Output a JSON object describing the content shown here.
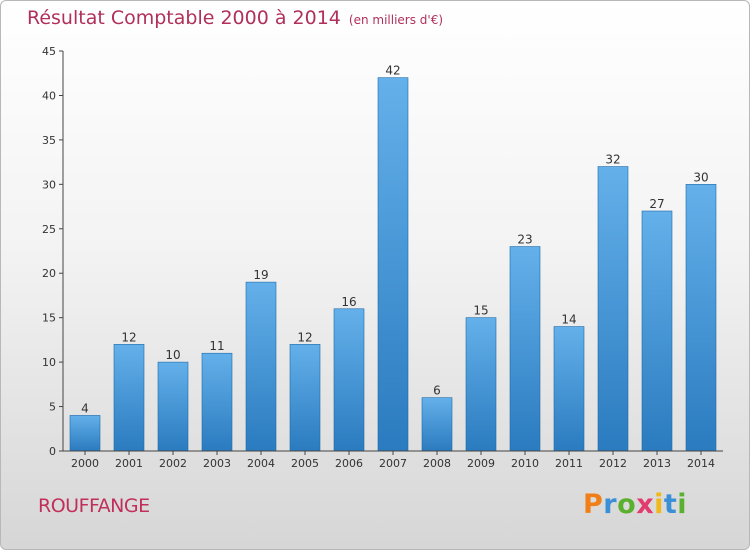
{
  "chart_data": {
    "type": "bar",
    "title": "Résultat Comptable 2000 à 2014",
    "subtitle": "(en milliers d'€)",
    "categories": [
      "2000",
      "2001",
      "2002",
      "2003",
      "2004",
      "2005",
      "2006",
      "2007",
      "2008",
      "2009",
      "2010",
      "2011",
      "2012",
      "2013",
      "2014"
    ],
    "values": [
      4,
      12,
      10,
      11,
      19,
      12,
      16,
      42,
      6,
      15,
      23,
      14,
      32,
      27,
      30
    ],
    "ylim": [
      0,
      45
    ],
    "yticks": [
      0,
      5,
      10,
      15,
      20,
      25,
      30,
      35,
      40,
      45
    ],
    "xlabel": "",
    "ylabel": "",
    "grid": false
  },
  "footer": {
    "town": "ROUFFANGE",
    "brand_letters": [
      "P",
      "r",
      "o",
      "x",
      "i",
      "t",
      "i"
    ],
    "brand_colors": [
      "#f07f1a",
      "#3a8fd6",
      "#5cb030",
      "#e23b6f",
      "#f0b81a",
      "#3a8fd6",
      "#5cb030"
    ]
  },
  "colors": {
    "bar_top": "#64b0ea",
    "bar_bottom": "#2a7bbf",
    "axis": "#444444",
    "title": "#b0305a"
  }
}
